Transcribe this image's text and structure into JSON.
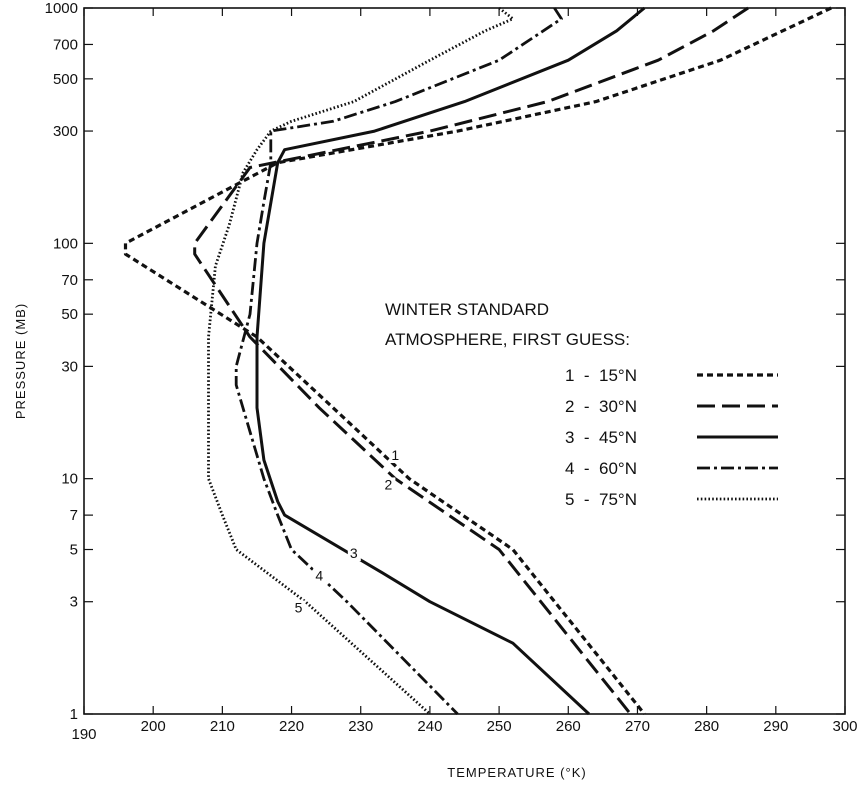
{
  "chart_data": {
    "type": "line",
    "title": "",
    "xlabel": "TEMPERATURE (°K)",
    "ylabel": "PRESSURE (MB)",
    "xlim": [
      190,
      300
    ],
    "ylim": [
      1000,
      1
    ],
    "y_scale": "log",
    "y_inverted": true,
    "grid": false,
    "x_ticks": [
      190,
      200,
      210,
      220,
      230,
      240,
      250,
      260,
      270,
      280,
      290,
      300
    ],
    "y_ticks": [
      1,
      3,
      5,
      7,
      10,
      30,
      50,
      70,
      100,
      300,
      500,
      700,
      1000
    ],
    "legend": {
      "title_line1": "WINTER STANDARD",
      "title_line2": "ATMOSPHERE, FIRST GUESS:",
      "placement": "center-right"
    },
    "series": [
      {
        "name": "15°N",
        "number": "1",
        "label": "1  -  15°N",
        "style": "dashed-short",
        "points": [
          [
            298,
            1000
          ],
          [
            291,
            800
          ],
          [
            282,
            600
          ],
          [
            264,
            400
          ],
          [
            244,
            300
          ],
          [
            218,
            220
          ],
          [
            196,
            100
          ],
          [
            196,
            90
          ],
          [
            215,
            40
          ],
          [
            226,
            20
          ],
          [
            237,
            10
          ],
          [
            252,
            5
          ],
          [
            271,
            1
          ]
        ]
      },
      {
        "name": "30°N",
        "number": "2",
        "label": "2  -  30°N",
        "style": "dashed-long",
        "points": [
          [
            286,
            1000
          ],
          [
            281,
            800
          ],
          [
            273,
            600
          ],
          [
            257,
            400
          ],
          [
            240,
            300
          ],
          [
            214,
            210
          ],
          [
            206,
            100
          ],
          [
            206,
            90
          ],
          [
            214,
            40
          ],
          [
            224,
            20
          ],
          [
            235,
            10
          ],
          [
            250,
            5
          ],
          [
            269,
            1
          ]
        ]
      },
      {
        "name": "45°N",
        "number": "3",
        "label": "3  -  45°N",
        "style": "solid",
        "points": [
          [
            271,
            1000
          ],
          [
            267,
            800
          ],
          [
            260,
            600
          ],
          [
            245,
            400
          ],
          [
            232,
            300
          ],
          [
            219,
            250
          ],
          [
            218,
            220
          ],
          [
            216,
            100
          ],
          [
            215,
            40
          ],
          [
            215,
            20
          ],
          [
            216,
            12
          ],
          [
            218,
            8
          ],
          [
            219,
            7
          ],
          [
            233,
            4
          ],
          [
            240,
            3
          ],
          [
            252,
            2
          ],
          [
            263,
            1
          ]
        ]
      },
      {
        "name": "60°N",
        "number": "4",
        "label": "4  -  60°N",
        "style": "dash-dot",
        "points": [
          [
            258,
            1000
          ],
          [
            259,
            900
          ],
          [
            250,
            600
          ],
          [
            235,
            400
          ],
          [
            226,
            330
          ],
          [
            217,
            300
          ],
          [
            217,
            220
          ],
          [
            216,
            150
          ],
          [
            215,
            100
          ],
          [
            214,
            50
          ],
          [
            212,
            30
          ],
          [
            212,
            25
          ],
          [
            216,
            10
          ],
          [
            218,
            7
          ],
          [
            220,
            5
          ],
          [
            228,
            3
          ],
          [
            244,
            1
          ]
        ]
      },
      {
        "name": "75°N",
        "number": "5",
        "label": "5  -  75°N",
        "style": "dotted",
        "points": [
          [
            250,
            1000
          ],
          [
            252,
            900
          ],
          [
            248,
            800
          ],
          [
            240,
            600
          ],
          [
            229,
            400
          ],
          [
            220,
            330
          ],
          [
            217,
            300
          ],
          [
            215,
            250
          ],
          [
            213,
            200
          ],
          [
            211,
            120
          ],
          [
            209,
            80
          ],
          [
            208,
            40
          ],
          [
            208,
            20
          ],
          [
            208,
            10
          ],
          [
            210,
            7
          ],
          [
            212,
            5
          ],
          [
            222,
            3
          ],
          [
            240,
            1
          ]
        ]
      }
    ]
  }
}
